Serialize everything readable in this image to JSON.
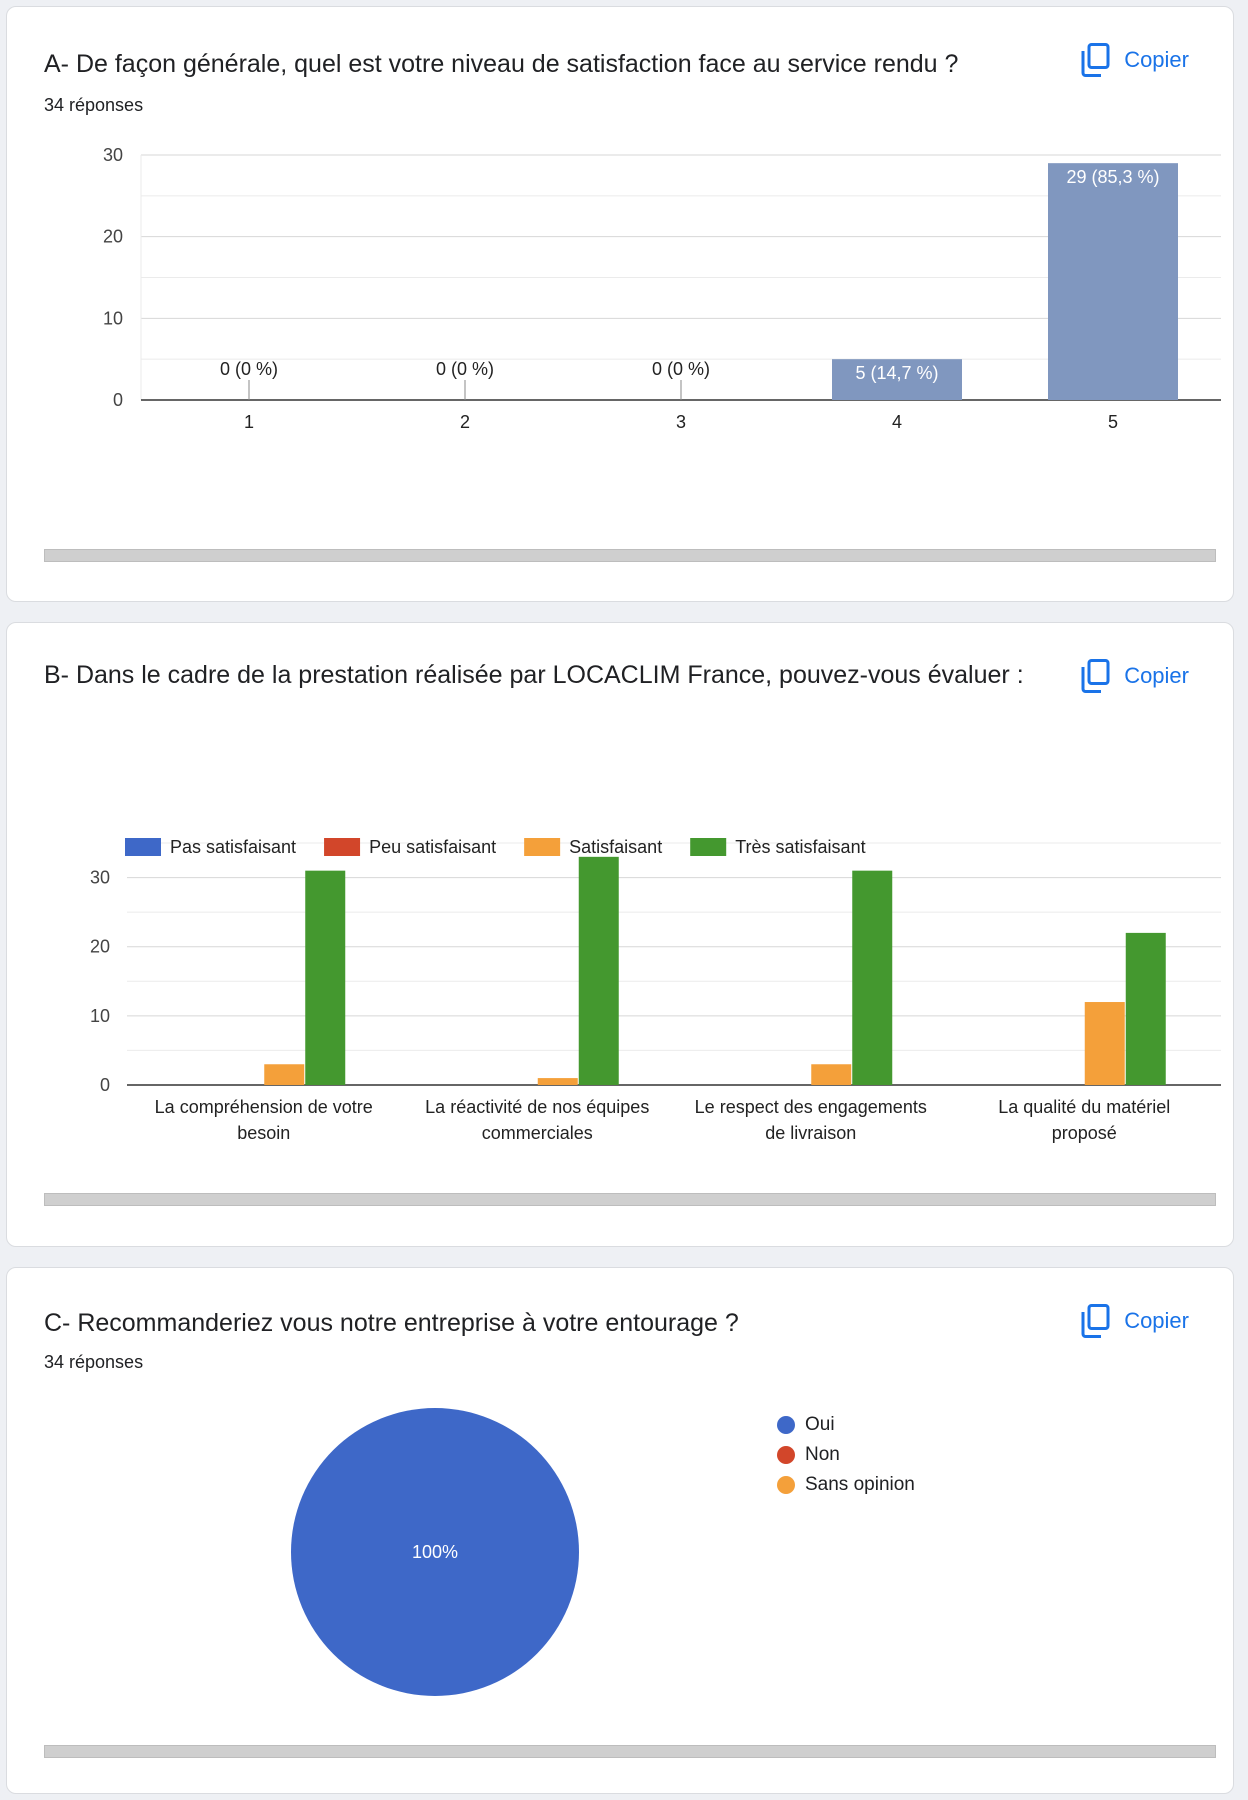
{
  "cards": {
    "a": {
      "title": "A- De façon générale, quel est votre niveau de satisfaction face au service rendu ?",
      "responses": "34 réponses",
      "copy_label": "Copier"
    },
    "b": {
      "title": "B- Dans le cadre de la prestation réalisée par LOCACLIM France, pouvez-vous évaluer :",
      "copy_label": "Copier"
    },
    "c": {
      "title": "C- Recommanderiez vous notre entreprise à votre entourage ?",
      "responses": "34 réponses",
      "copy_label": "Copier"
    }
  },
  "chart_data": [
    {
      "type": "bar",
      "categories": [
        "1",
        "2",
        "3",
        "4",
        "5"
      ],
      "values": [
        0,
        0,
        0,
        5,
        29
      ],
      "data_labels": [
        "0 (0 %)",
        "0 (0 %)",
        "0 (0 %)",
        "5 (14,7 %)",
        "29 (85,3 %)"
      ],
      "ylim": [
        0,
        30
      ],
      "yticks": [
        0,
        10,
        20,
        30
      ],
      "grid": true,
      "colors": {
        "bar": "#8097bf"
      }
    },
    {
      "type": "bar",
      "categories": [
        [
          "La compréhension de votre",
          "besoin"
        ],
        [
          "La réactivité de nos équipes",
          "commerciales"
        ],
        [
          "Le respect des engagements",
          "de livraison"
        ],
        [
          "La qualité du matériel",
          "proposé"
        ]
      ],
      "series": [
        {
          "name": "Pas satisfaisant",
          "color": "#3e68c8",
          "values": [
            0,
            0,
            0,
            0
          ]
        },
        {
          "name": "Peu satisfaisant",
          "color": "#d2462a",
          "values": [
            0,
            0,
            0,
            0
          ]
        },
        {
          "name": "Satisfaisant",
          "color": "#f4a03a",
          "values": [
            3,
            1,
            3,
            12
          ]
        },
        {
          "name": "Très satisfaisant",
          "color": "#44982f",
          "values": [
            31,
            33,
            31,
            22
          ]
        }
      ],
      "ylim": [
        0,
        35
      ],
      "yticks": [
        0,
        10,
        20,
        30
      ],
      "grid": true,
      "legend": "top-left"
    },
    {
      "type": "pie",
      "slices": [
        {
          "label": "Oui",
          "value": 34,
          "color": "#3e68c8"
        },
        {
          "label": "Non",
          "value": 0,
          "color": "#d2462a"
        },
        {
          "label": "Sans opinion",
          "value": 0,
          "color": "#f4a03a"
        }
      ],
      "slice_label": "100%",
      "legend": "right"
    }
  ]
}
